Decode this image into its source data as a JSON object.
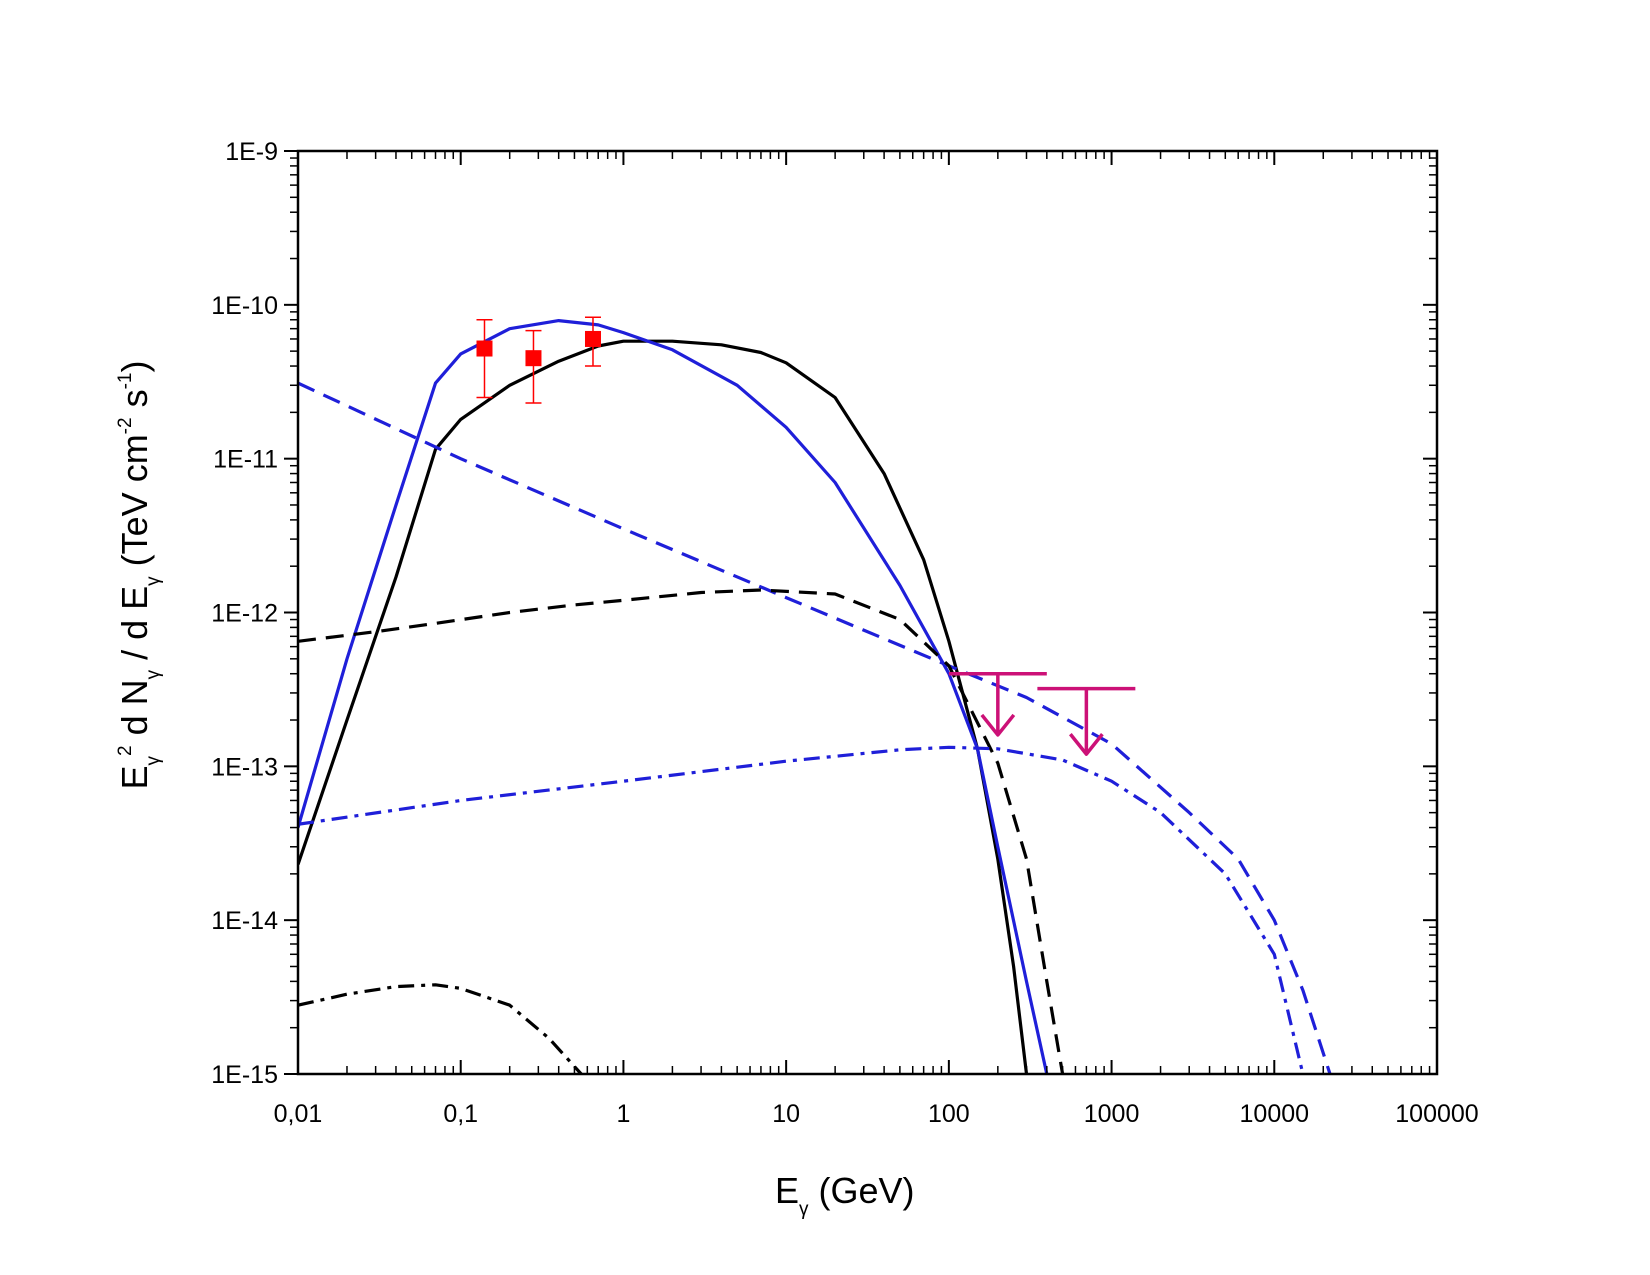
{
  "chart_data": {
    "type": "line",
    "title": "",
    "x_scale": "log",
    "y_scale": "log",
    "xlim": [
      0.01,
      100000
    ],
    "ylim": [
      1e-15,
      1e-09
    ],
    "x_tick_values": [
      0.01,
      0.1,
      1,
      10,
      100,
      1000,
      10000,
      100000
    ],
    "x_tick_labels": [
      "0,01",
      "0,1",
      "1",
      "10",
      "100",
      "1000",
      "10000",
      "100000"
    ],
    "y_tick_values": [
      1e-09,
      1e-10,
      1e-11,
      1e-12,
      1e-13,
      1e-14,
      1e-15
    ],
    "y_tick_labels": [
      "1E-9",
      "1E-10",
      "1E-11",
      "1E-12",
      "1E-13",
      "1E-14",
      "1E-15"
    ],
    "xlabel": {
      "main": "E",
      "sub": "γ",
      "rest": " (GeV)"
    },
    "ylabel": {
      "p1": "E",
      "sub1": "γ",
      "sup1": "2",
      "p2": " d N",
      "sub2": "γ",
      "p3": " / d E",
      "sub3": "γ",
      "p4": " (TeV cm",
      "sup2": "-2",
      "p5": " s",
      "sup3": "-1",
      "p6": ")"
    },
    "series": [
      {
        "name": "black solid",
        "color": "#000000",
        "style": "solid",
        "x": [
          0.01,
          0.02,
          0.04,
          0.07,
          0.1,
          0.2,
          0.4,
          0.7,
          1,
          2,
          4,
          7,
          10,
          20,
          40,
          70,
          100,
          150,
          200,
          250,
          300
        ],
        "y": [
          2.3e-14,
          2e-13,
          1.7e-12,
          1.15e-11,
          1.8e-11,
          3e-11,
          4.3e-11,
          5.4e-11,
          5.8e-11,
          5.8e-11,
          5.5e-11,
          4.9e-11,
          4.2e-11,
          2.5e-11,
          8e-12,
          2.2e-12,
          6.5e-13,
          1.3e-13,
          2.5e-14,
          5e-15,
          1e-15
        ]
      },
      {
        "name": "blue solid",
        "color": "#1f1fd9",
        "style": "solid",
        "x": [
          0.01,
          0.02,
          0.04,
          0.07,
          0.1,
          0.2,
          0.4,
          0.7,
          1,
          2,
          5,
          10,
          20,
          50,
          100,
          150,
          200,
          300,
          400
        ],
        "y": [
          4e-14,
          5e-13,
          5e-12,
          3.1e-11,
          4.8e-11,
          7e-11,
          7.9e-11,
          7.4e-11,
          6.6e-11,
          5.1e-11,
          3e-11,
          1.6e-11,
          7e-12,
          1.5e-12,
          4e-13,
          1.3e-13,
          3e-14,
          4e-15,
          1e-15
        ]
      },
      {
        "name": "blue dashed",
        "color": "#1f1fd9",
        "style": "dashed",
        "x": [
          0.01,
          0.1,
          1,
          10,
          100,
          300,
          1000,
          3000,
          6000,
          10000,
          15000,
          22000
        ],
        "y": [
          3.1e-11,
          1e-11,
          3.5e-12,
          1.25e-12,
          4.5e-13,
          2.8e-13,
          1.4e-13,
          5e-14,
          2.5e-14,
          1e-14,
          3.5e-15,
          1e-15
        ]
      },
      {
        "name": "black dashed",
        "color": "#000000",
        "style": "dashed",
        "x": [
          0.01,
          0.03,
          0.07,
          0.2,
          0.5,
          1,
          3,
          7,
          20,
          50,
          100,
          200,
          300,
          400,
          500
        ],
        "y": [
          6.5e-13,
          7.5e-13,
          8.5e-13,
          1e-12,
          1.12e-12,
          1.2e-12,
          1.35e-12,
          1.4e-12,
          1.32e-12,
          9e-13,
          4.5e-13,
          1.05e-13,
          2.5e-14,
          4e-15,
          1e-15
        ]
      },
      {
        "name": "blue dash-dot",
        "color": "#1f1fd9",
        "style": "dashdot",
        "x": [
          0.01,
          0.1,
          1,
          10,
          50,
          100,
          200,
          500,
          1000,
          2000,
          5000,
          10000,
          15000
        ],
        "y": [
          4.2e-14,
          6e-14,
          8e-14,
          1.08e-13,
          1.28e-13,
          1.33e-13,
          1.3e-13,
          1.1e-13,
          8e-14,
          5e-14,
          2e-14,
          6e-15,
          1e-15
        ]
      },
      {
        "name": "black dash-dot",
        "color": "#000000",
        "style": "dashdot",
        "x": [
          0.01,
          0.02,
          0.04,
          0.07,
          0.1,
          0.2,
          0.35,
          0.55
        ],
        "y": [
          2.8e-15,
          3.3e-15,
          3.7e-15,
          3.8e-15,
          3.6e-15,
          2.8e-15,
          1.7e-15,
          1e-15
        ]
      }
    ],
    "data_points": {
      "name": "measured points",
      "color": "#ff0000",
      "points": [
        {
          "x": 0.14,
          "y": 5.2e-11,
          "ylo": 2.5e-11,
          "yhi": 8e-11
        },
        {
          "x": 0.28,
          "y": 4.5e-11,
          "ylo": 2.3e-11,
          "yhi": 6.8e-11
        },
        {
          "x": 0.65,
          "y": 6e-11,
          "ylo": 4e-11,
          "yhi": 8.3e-11
        }
      ]
    },
    "upper_limits": {
      "color": "#cc1177",
      "items": [
        {
          "x": 200,
          "y": 4e-13,
          "xmin": 100,
          "xmax": 400,
          "y_arrow_tip": 1.6e-13
        },
        {
          "x": 700,
          "y": 3.2e-13,
          "xmin": 350,
          "xmax": 1400,
          "y_arrow_tip": 1.2e-13
        }
      ]
    }
  }
}
